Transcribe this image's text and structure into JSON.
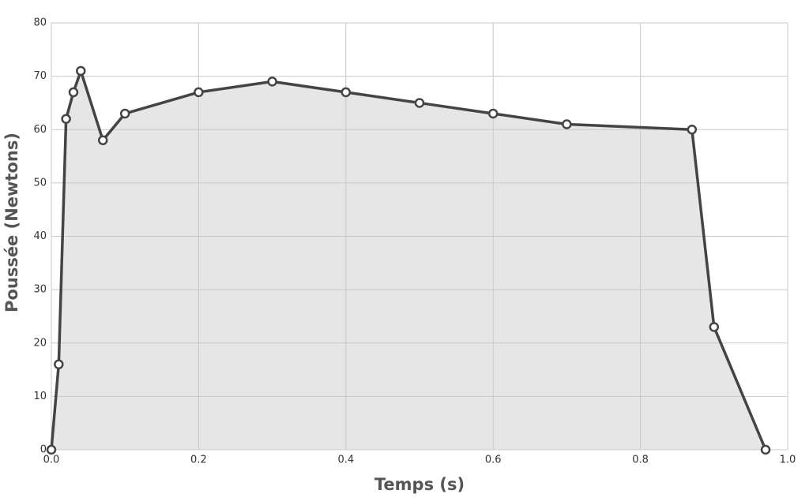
{
  "chart_data": {
    "type": "area",
    "xlabel": "Temps (s)",
    "ylabel": "Poussée (Newtons)",
    "x": [
      0,
      0.01,
      0.02,
      0.03,
      0.04,
      0.07,
      0.1,
      0.2,
      0.3,
      0.4,
      0.5,
      0.6,
      0.7,
      0.87,
      0.9,
      0.97
    ],
    "series": [
      {
        "color": "#444444",
        "values": [
          0,
          16,
          62,
          67,
          71,
          58,
          63,
          67,
          69,
          67,
          65,
          63,
          61,
          60,
          23,
          0
        ]
      }
    ],
    "fill": "#e6e6e6",
    "xlim": [
      0,
      1
    ],
    "xticks": [
      {
        "value": 0,
        "label": "0.0"
      },
      0.2,
      0.4,
      0.6,
      0.8,
      {
        "value": 1,
        "label": "1.0"
      }
    ],
    "ylim": [
      0,
      80
    ],
    "yticks": [
      0,
      10,
      20,
      30,
      40,
      50,
      60,
      70,
      80
    ],
    "grid": true
  }
}
